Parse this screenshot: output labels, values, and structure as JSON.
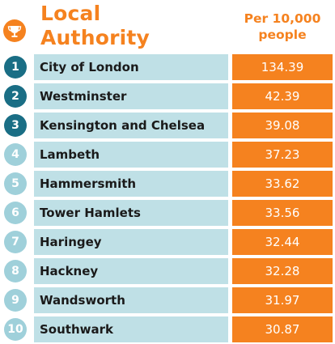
{
  "header": {
    "title_line1": "Local",
    "title_line2": "Authority",
    "column_line1": "Per 10,000",
    "column_line2": "people",
    "icon": "trophy-icon"
  },
  "colors": {
    "accent": "#f5821f",
    "rank_dark": "#1a6e85",
    "rank_light": "#9fd0da",
    "row_bg": "#bfe0e6"
  },
  "chart_data": {
    "type": "table",
    "categories": [
      "City of London",
      "Westminster",
      "Kensington and Chelsea",
      "Lambeth",
      "Hammersmith",
      "Tower Hamlets",
      "Haringey",
      "Hackney",
      "Wandsworth",
      "Southwark"
    ],
    "ranks": [
      "1",
      "2",
      "3",
      "4",
      "5",
      "6",
      "7",
      "8",
      "9",
      "10"
    ],
    "values": [
      134.39,
      42.39,
      39.08,
      37.23,
      33.62,
      33.56,
      32.44,
      32.28,
      31.97,
      30.87
    ],
    "value_labels": [
      "134.39",
      "42.39",
      "39.08",
      "37.23",
      "33.62",
      "33.56",
      "32.44",
      "32.28",
      "31.97",
      "30.87"
    ],
    "columns": [
      "Local Authority",
      "Per 10,000 people"
    ]
  }
}
